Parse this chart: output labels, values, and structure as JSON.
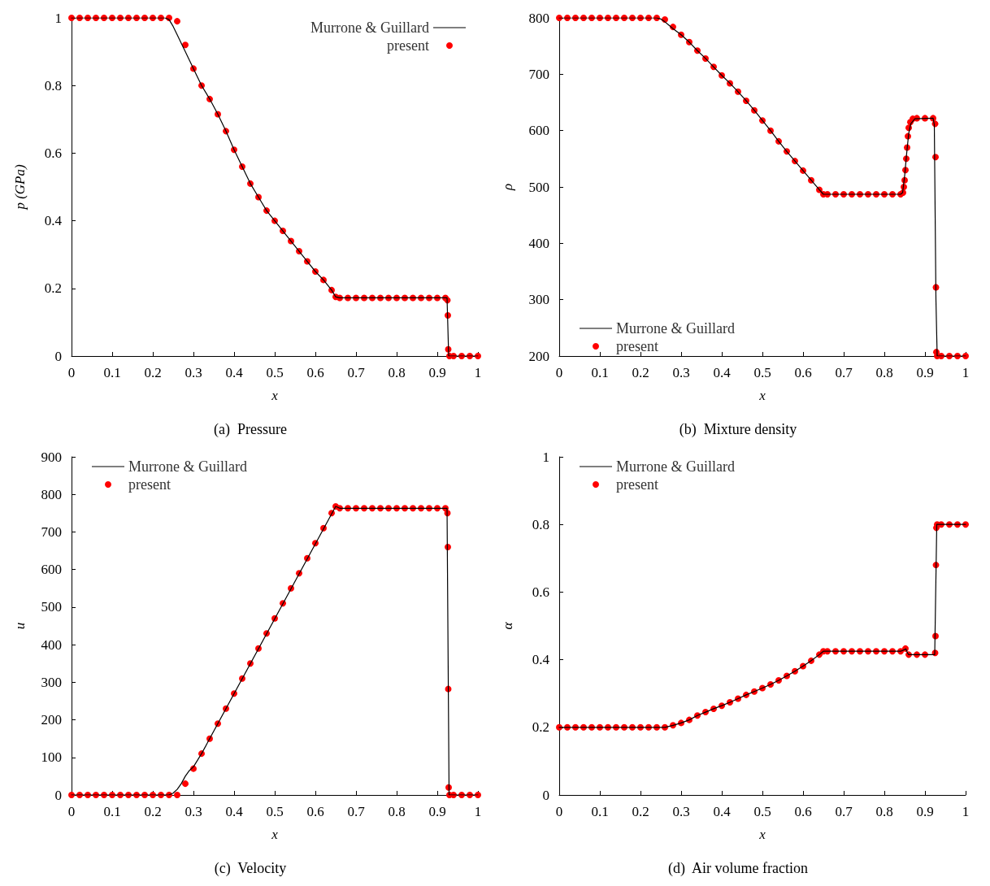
{
  "chart_data": [
    {
      "type": "line",
      "title": "(a)  Pressure",
      "xlabel": "x",
      "ylabel": "p (GPa)",
      "xlim": [
        0,
        1
      ],
      "xticks": [
        0,
        0.1,
        0.2,
        0.3,
        0.4,
        0.5,
        0.6,
        0.7,
        0.8,
        0.9,
        1
      ],
      "ylim": [
        0,
        1
      ],
      "yticks": [
        0,
        0.2,
        0.4,
        0.6,
        0.8,
        1
      ],
      "grid": false,
      "legend": "top right",
      "marker": "circle",
      "line_style": "solid",
      "series": [
        {
          "name": "Murrone & Guillard",
          "marker": "none",
          "color": "#000000",
          "x": [
            0,
            0.23,
            0.24,
            0.25,
            0.26,
            0.27,
            0.28,
            0.3,
            0.32,
            0.34,
            0.36,
            0.38,
            0.4,
            0.42,
            0.44,
            0.46,
            0.48,
            0.5,
            0.52,
            0.54,
            0.56,
            0.58,
            0.6,
            0.62,
            0.64,
            0.65,
            0.66,
            0.924,
            0.928,
            1
          ],
          "values": [
            1,
            1,
            0.995,
            0.975,
            0.95,
            0.925,
            0.9,
            0.85,
            0.8,
            0.76,
            0.715,
            0.665,
            0.61,
            0.56,
            0.51,
            0.47,
            0.43,
            0.4,
            0.37,
            0.34,
            0.31,
            0.28,
            0.25,
            0.225,
            0.195,
            0.175,
            0.172,
            0.172,
            0,
            0
          ]
        },
        {
          "name": "present",
          "type": "scatter",
          "color": "#ff0000",
          "x": [
            0,
            0.02,
            0.04,
            0.06,
            0.08,
            0.1,
            0.12,
            0.14,
            0.16,
            0.18,
            0.2,
            0.22,
            0.24,
            0.26,
            0.28,
            0.3,
            0.32,
            0.34,
            0.36,
            0.38,
            0.4,
            0.42,
            0.44,
            0.46,
            0.48,
            0.5,
            0.52,
            0.54,
            0.56,
            0.58,
            0.6,
            0.62,
            0.64,
            0.65,
            0.66,
            0.68,
            0.7,
            0.72,
            0.74,
            0.76,
            0.78,
            0.8,
            0.82,
            0.84,
            0.86,
            0.88,
            0.9,
            0.92,
            0.925,
            0.926,
            0.927,
            0.93,
            0.94,
            0.96,
            0.98,
            1
          ],
          "values": [
            1,
            1,
            1,
            1,
            1,
            1,
            1,
            1,
            1,
            1,
            1,
            1,
            1,
            0.99,
            0.92,
            0.85,
            0.8,
            0.76,
            0.715,
            0.665,
            0.61,
            0.56,
            0.51,
            0.47,
            0.43,
            0.4,
            0.37,
            0.34,
            0.31,
            0.28,
            0.25,
            0.225,
            0.195,
            0.175,
            0.172,
            0.172,
            0.172,
            0.172,
            0.172,
            0.172,
            0.172,
            0.172,
            0.172,
            0.172,
            0.172,
            0.172,
            0.172,
            0.172,
            0.165,
            0.12,
            0.02,
            0,
            0,
            0,
            0,
            0
          ]
        }
      ]
    },
    {
      "type": "line",
      "title": "(b)  Mixture density",
      "xlabel": "x",
      "ylabel": "ρ",
      "xlim": [
        0,
        1
      ],
      "xticks": [
        0,
        0.1,
        0.2,
        0.3,
        0.4,
        0.5,
        0.6,
        0.7,
        0.8,
        0.9,
        1
      ],
      "ylim": [
        200,
        800
      ],
      "yticks": [
        200,
        300,
        400,
        500,
        600,
        700,
        800
      ],
      "grid": false,
      "legend": "bottom left",
      "marker": "circle",
      "line_style": "solid",
      "series": [
        {
          "name": "Murrone & Guillard",
          "marker": "none",
          "color": "#000000",
          "x": [
            0,
            0.24,
            0.25,
            0.26,
            0.27,
            0.28,
            0.3,
            0.32,
            0.34,
            0.36,
            0.38,
            0.4,
            0.42,
            0.44,
            0.46,
            0.48,
            0.5,
            0.52,
            0.54,
            0.56,
            0.58,
            0.6,
            0.62,
            0.64,
            0.65,
            0.66,
            0.84,
            0.845,
            0.85,
            0.855,
            0.86,
            0.865,
            0.875,
            0.92,
            0.923,
            0.927,
            0.93,
            1
          ],
          "values": [
            800,
            800,
            798,
            793,
            787,
            781,
            770,
            757,
            742,
            728,
            713,
            698,
            684,
            669,
            653,
            636,
            618,
            600,
            581,
            563,
            546,
            529,
            512,
            495,
            487,
            487,
            487,
            490,
            520,
            560,
            595,
            612,
            621,
            622,
            610,
            300,
            200,
            200
          ]
        },
        {
          "name": "present",
          "type": "scatter",
          "color": "#ff0000",
          "x": [
            0,
            0.02,
            0.04,
            0.06,
            0.08,
            0.1,
            0.12,
            0.14,
            0.16,
            0.18,
            0.2,
            0.22,
            0.24,
            0.26,
            0.28,
            0.3,
            0.32,
            0.34,
            0.36,
            0.38,
            0.4,
            0.42,
            0.44,
            0.46,
            0.48,
            0.5,
            0.52,
            0.54,
            0.56,
            0.58,
            0.6,
            0.62,
            0.64,
            0.65,
            0.66,
            0.68,
            0.7,
            0.72,
            0.74,
            0.76,
            0.78,
            0.8,
            0.82,
            0.84,
            0.846,
            0.848,
            0.85,
            0.852,
            0.854,
            0.856,
            0.858,
            0.86,
            0.864,
            0.87,
            0.88,
            0.9,
            0.92,
            0.925,
            0.926,
            0.927,
            0.928,
            0.93,
            0.94,
            0.96,
            0.98,
            1
          ],
          "values": [
            800,
            800,
            800,
            800,
            800,
            800,
            800,
            800,
            800,
            800,
            800,
            800,
            800,
            797,
            784,
            770,
            757,
            742,
            728,
            713,
            698,
            684,
            669,
            653,
            636,
            618,
            600,
            581,
            563,
            546,
            529,
            512,
            495,
            487,
            487,
            487,
            487,
            487,
            487,
            487,
            487,
            487,
            487,
            487,
            490,
            500,
            512,
            530,
            550,
            570,
            590,
            605,
            615,
            621,
            622,
            622,
            622,
            612,
            553,
            322,
            207,
            200,
            200,
            200,
            200,
            200
          ]
        }
      ]
    },
    {
      "type": "line",
      "title": "(c)  Velocity",
      "xlabel": "x",
      "ylabel": "u",
      "xlim": [
        0,
        1
      ],
      "xticks": [
        0,
        0.1,
        0.2,
        0.3,
        0.4,
        0.5,
        0.6,
        0.7,
        0.8,
        0.9,
        1
      ],
      "ylim": [
        0,
        900
      ],
      "yticks": [
        0,
        100,
        200,
        300,
        400,
        500,
        600,
        700,
        800,
        900
      ],
      "grid": false,
      "legend": "top left",
      "marker": "circle",
      "line_style": "solid",
      "series": [
        {
          "name": "Murrone & Guillard",
          "marker": "none",
          "color": "#000000",
          "x": [
            0,
            0.24,
            0.25,
            0.26,
            0.27,
            0.28,
            0.29,
            0.3,
            0.32,
            0.65,
            0.66,
            0.924,
            0.929,
            1
          ],
          "values": [
            0,
            0,
            5,
            15,
            30,
            50,
            65,
            75,
            110,
            768,
            763,
            763,
            0,
            0
          ]
        },
        {
          "name": "present",
          "type": "scatter",
          "color": "#ff0000",
          "x": [
            0,
            0.02,
            0.04,
            0.06,
            0.08,
            0.1,
            0.12,
            0.14,
            0.16,
            0.18,
            0.2,
            0.22,
            0.24,
            0.26,
            0.28,
            0.3,
            0.32,
            0.34,
            0.36,
            0.38,
            0.4,
            0.42,
            0.44,
            0.46,
            0.48,
            0.5,
            0.52,
            0.54,
            0.56,
            0.58,
            0.6,
            0.62,
            0.64,
            0.65,
            0.66,
            0.68,
            0.7,
            0.72,
            0.74,
            0.76,
            0.78,
            0.8,
            0.82,
            0.84,
            0.86,
            0.88,
            0.9,
            0.92,
            0.925,
            0.926,
            0.927,
            0.928,
            0.93,
            0.94,
            0.96,
            0.98,
            1
          ],
          "values": [
            0,
            0,
            0,
            0,
            0,
            0,
            0,
            0,
            0,
            0,
            0,
            0,
            0,
            0,
            30,
            70,
            110,
            150,
            190,
            230,
            270,
            310,
            350,
            390,
            430,
            470,
            510,
            550,
            590,
            630,
            670,
            710,
            750,
            768,
            763,
            763,
            763,
            763,
            763,
            763,
            763,
            763,
            763,
            763,
            763,
            763,
            763,
            763,
            750,
            660,
            282,
            20,
            0,
            0,
            0,
            0,
            0
          ]
        }
      ]
    },
    {
      "type": "line",
      "title": "(d)  Air volume fraction",
      "xlabel": "x",
      "ylabel": "α",
      "xlim": [
        0,
        1
      ],
      "xticks": [
        0,
        0.1,
        0.2,
        0.3,
        0.4,
        0.5,
        0.6,
        0.7,
        0.8,
        0.9,
        1
      ],
      "ylim": [
        0,
        1
      ],
      "yticks": [
        0,
        0.2,
        0.4,
        0.6,
        0.8,
        1
      ],
      "grid": false,
      "legend": "top left",
      "marker": "circle",
      "line_style": "solid",
      "series": [
        {
          "name": "Murrone & Guillard",
          "marker": "none",
          "color": "#000000",
          "x": [
            0,
            0.26,
            0.28,
            0.3,
            0.32,
            0.34,
            0.36,
            0.38,
            0.4,
            0.42,
            0.44,
            0.46,
            0.48,
            0.5,
            0.52,
            0.54,
            0.56,
            0.58,
            0.6,
            0.62,
            0.64,
            0.65,
            0.84,
            0.85,
            0.853,
            0.857,
            0.86,
            0.924,
            0.929,
            1
          ],
          "values": [
            0.2,
            0.2,
            0.206,
            0.213,
            0.222,
            0.235,
            0.245,
            0.255,
            0.264,
            0.274,
            0.285,
            0.296,
            0.306,
            0.316,
            0.327,
            0.339,
            0.352,
            0.366,
            0.381,
            0.397,
            0.415,
            0.425,
            0.425,
            0.43,
            0.432,
            0.42,
            0.415,
            0.415,
            0.8,
            0.8
          ]
        },
        {
          "name": "present",
          "type": "scatter",
          "color": "#ff0000",
          "x": [
            0,
            0.02,
            0.04,
            0.06,
            0.08,
            0.1,
            0.12,
            0.14,
            0.16,
            0.18,
            0.2,
            0.22,
            0.24,
            0.26,
            0.28,
            0.3,
            0.32,
            0.34,
            0.36,
            0.38,
            0.4,
            0.42,
            0.44,
            0.46,
            0.48,
            0.5,
            0.52,
            0.54,
            0.56,
            0.58,
            0.6,
            0.62,
            0.64,
            0.65,
            0.66,
            0.68,
            0.7,
            0.72,
            0.74,
            0.76,
            0.78,
            0.8,
            0.82,
            0.84,
            0.852,
            0.86,
            0.88,
            0.9,
            0.925,
            0.926,
            0.927,
            0.928,
            0.93,
            0.94,
            0.96,
            0.98,
            1
          ],
          "values": [
            0.2,
            0.2,
            0.2,
            0.2,
            0.2,
            0.2,
            0.2,
            0.2,
            0.2,
            0.2,
            0.2,
            0.2,
            0.2,
            0.2,
            0.206,
            0.213,
            0.222,
            0.235,
            0.245,
            0.255,
            0.264,
            0.274,
            0.285,
            0.296,
            0.306,
            0.316,
            0.327,
            0.339,
            0.352,
            0.366,
            0.381,
            0.397,
            0.415,
            0.425,
            0.425,
            0.425,
            0.425,
            0.425,
            0.425,
            0.425,
            0.425,
            0.425,
            0.425,
            0.425,
            0.433,
            0.415,
            0.415,
            0.415,
            0.42,
            0.47,
            0.68,
            0.79,
            0.8,
            0.8,
            0.8,
            0.8,
            0.8
          ]
        }
      ]
    }
  ]
}
